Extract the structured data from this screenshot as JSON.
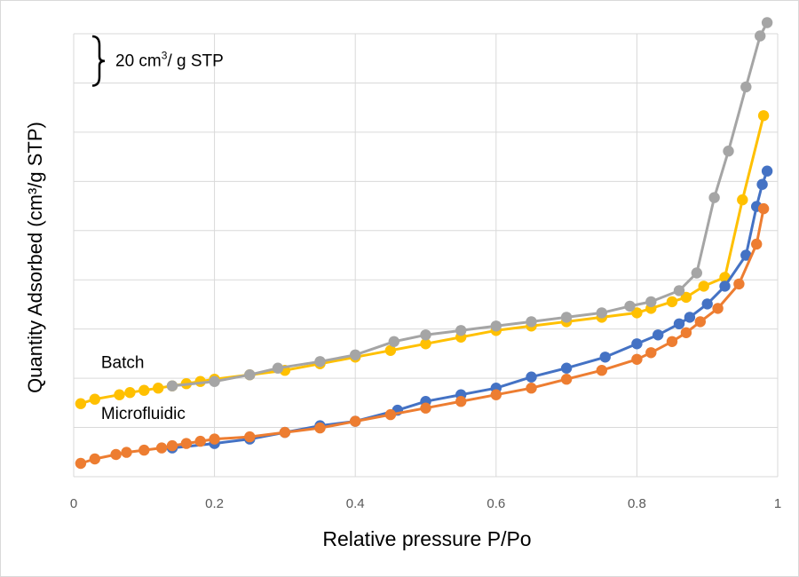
{
  "chart_data": {
    "type": "line",
    "title": "",
    "xlabel": "Relative pressure P/Po",
    "ylabel": "Quantity Adsorbed (cm³/g STP)",
    "xlim": [
      0,
      1
    ],
    "ylim": [
      0,
      10
    ],
    "x_ticks": [
      "0",
      "0.2",
      "0.4",
      "0.6",
      "0.8",
      "1"
    ],
    "grid": true,
    "legend": "none",
    "scale_bar": {
      "text_main": "20 cm",
      "text_sup": "3",
      "text_rest": "/ g STP",
      "size_gridlines": 1
    },
    "annotations": [
      {
        "id": "batch",
        "text": "Batch",
        "x": 0.02,
        "y": 2.45
      },
      {
        "id": "microfluidic",
        "text": "Microfluidic",
        "x": 0.02,
        "y": 1.3
      }
    ],
    "series": [
      {
        "color": "#FFC000",
        "x": [
          0.01,
          0.03,
          0.065,
          0.08,
          0.1,
          0.12,
          0.14,
          0.16,
          0.18,
          0.2,
          0.25,
          0.3,
          0.35,
          0.4,
          0.45,
          0.5,
          0.55,
          0.6,
          0.65,
          0.7,
          0.75,
          0.8,
          0.82,
          0.85,
          0.87,
          0.895,
          0.925,
          0.95,
          0.98
        ],
        "y": [
          1.65,
          1.75,
          1.85,
          1.9,
          1.95,
          2.0,
          2.05,
          2.1,
          2.15,
          2.2,
          2.3,
          2.4,
          2.55,
          2.7,
          2.85,
          3.0,
          3.15,
          3.3,
          3.4,
          3.5,
          3.6,
          3.7,
          3.8,
          3.95,
          4.05,
          4.3,
          4.5,
          6.25,
          8.15
        ]
      },
      {
        "color": "#A5A5A5",
        "x": [
          0.14,
          0.2,
          0.25,
          0.29,
          0.35,
          0.4,
          0.455,
          0.5,
          0.55,
          0.6,
          0.65,
          0.7,
          0.75,
          0.79,
          0.82,
          0.86,
          0.885,
          0.91,
          0.93,
          0.955,
          0.975,
          0.985
        ],
        "y": [
          2.05,
          2.15,
          2.3,
          2.45,
          2.6,
          2.75,
          3.05,
          3.2,
          3.3,
          3.4,
          3.5,
          3.6,
          3.7,
          3.85,
          3.95,
          4.2,
          4.6,
          6.3,
          7.35,
          8.8,
          9.95,
          10.25
        ]
      },
      {
        "color": "#4472C4",
        "x": [
          0.14,
          0.2,
          0.25,
          0.3,
          0.35,
          0.4,
          0.46,
          0.5,
          0.55,
          0.6,
          0.65,
          0.7,
          0.755,
          0.8,
          0.83,
          0.86,
          0.875,
          0.9,
          0.925,
          0.955,
          0.97,
          0.978,
          0.985
        ],
        "y": [
          0.65,
          0.75,
          0.85,
          1.0,
          1.15,
          1.25,
          1.5,
          1.7,
          1.85,
          2.0,
          2.25,
          2.45,
          2.7,
          3.0,
          3.2,
          3.45,
          3.6,
          3.9,
          4.3,
          5.0,
          6.1,
          6.6,
          6.9
        ]
      },
      {
        "color": "#ED7D31",
        "x": [
          0.01,
          0.03,
          0.06,
          0.075,
          0.1,
          0.125,
          0.14,
          0.16,
          0.18,
          0.2,
          0.25,
          0.3,
          0.35,
          0.4,
          0.45,
          0.5,
          0.55,
          0.6,
          0.65,
          0.7,
          0.75,
          0.8,
          0.82,
          0.85,
          0.87,
          0.89,
          0.915,
          0.945,
          0.97,
          0.98
        ],
        "y": [
          0.3,
          0.4,
          0.5,
          0.55,
          0.6,
          0.65,
          0.7,
          0.75,
          0.8,
          0.85,
          0.9,
          1.0,
          1.1,
          1.25,
          1.4,
          1.55,
          1.7,
          1.85,
          2.0,
          2.2,
          2.4,
          2.65,
          2.8,
          3.05,
          3.25,
          3.5,
          3.8,
          4.35,
          5.25,
          6.05
        ]
      }
    ]
  }
}
